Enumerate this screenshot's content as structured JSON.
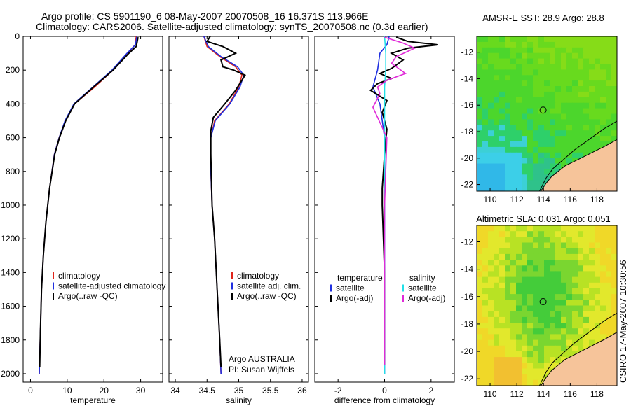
{
  "title_line1": "Argo profile: CS 5901190_6 08-May-2007 20070508_16 16.371S 113.966E",
  "title_line2": "Climatology: CARS2006. Satellite-adjusted climatology: synTS_20070508.nc (0.3d earlier)",
  "side_label": "CSIRO 17-May-2007 10:30:56",
  "colors": {
    "climatology": "#e0241b",
    "satellite": "#1f2fe0",
    "argo": "#000000",
    "sal_satellite": "#22e0e8",
    "sal_argo": "#e02ad8",
    "land": "#f6c49a",
    "coast": "#000000"
  },
  "chart_data": [
    {
      "type": "line",
      "xlabel": "temperature",
      "ylabel": "",
      "xlim": [
        -2,
        36
      ],
      "ylim": [
        0,
        2050
      ],
      "xticks": [
        0,
        10,
        20,
        30
      ],
      "yticks": [
        0,
        200,
        400,
        600,
        800,
        1000,
        1200,
        1400,
        1600,
        1800,
        2000
      ],
      "y_reversed": true,
      "legend": [
        "climatology",
        "satellite-adjusted climatology",
        "Argo(..raw -QC)"
      ],
      "series": [
        {
          "name": "climatology",
          "color_key": "climatology",
          "x": [
            28.8,
            28.5,
            26.5,
            22.5,
            17.5,
            12.0,
            9.5,
            7.8,
            6.5,
            5.2,
            4.2,
            3.5,
            3.0,
            2.7,
            2.4
          ],
          "y": [
            0,
            50,
            100,
            200,
            300,
            400,
            500,
            600,
            700,
            900,
            1100,
            1300,
            1500,
            1750,
            2000
          ]
        },
        {
          "name": "satellite-adjusted climatology",
          "color_key": "satellite",
          "x": [
            29.0,
            28.6,
            26.3,
            22.2,
            17.0,
            11.8,
            9.4,
            7.8,
            6.5,
            5.2,
            4.2,
            3.5,
            3.0,
            2.7,
            2.4
          ],
          "y": [
            0,
            50,
            100,
            200,
            300,
            400,
            500,
            600,
            700,
            900,
            1100,
            1300,
            1500,
            1750,
            2000
          ]
        },
        {
          "name": "Argo(..raw -QC)",
          "color_key": "argo",
          "x": [
            29.3,
            29.0,
            28.8,
            26.8,
            22.5,
            17.2,
            12.0,
            9.6,
            7.9,
            6.6,
            5.2,
            4.2,
            3.5,
            3.0,
            2.7,
            2.5
          ],
          "y": [
            5,
            40,
            60,
            100,
            200,
            300,
            400,
            500,
            600,
            700,
            900,
            1100,
            1300,
            1500,
            1750,
            1960
          ]
        }
      ]
    },
    {
      "type": "line",
      "xlabel": "salinity",
      "xlim": [
        33.9,
        36.1
      ],
      "ylim": [
        0,
        2050
      ],
      "xticks": [
        34,
        34.5,
        35,
        35.5,
        36
      ],
      "yticks": [
        0,
        200,
        400,
        600,
        800,
        1000,
        1200,
        1400,
        1600,
        1800,
        2000
      ],
      "y_reversed": true,
      "legend": [
        "climatology",
        "satellite adj. clim.",
        "Argo(..raw -QC)"
      ],
      "annotation": [
        "Argo AUSTRALIA",
        "PI: Susan Wijffels"
      ],
      "series": [
        {
          "name": "climatology",
          "color_key": "climatology",
          "x": [
            34.45,
            34.5,
            34.7,
            34.95,
            35.05,
            35.0,
            34.85,
            34.62,
            34.56,
            34.56,
            34.58,
            34.62,
            34.66,
            34.7,
            34.72
          ],
          "y": [
            0,
            60,
            120,
            180,
            230,
            300,
            400,
            500,
            600,
            800,
            1000,
            1200,
            1500,
            1800,
            2000
          ]
        },
        {
          "name": "satellite adj. clim.",
          "color_key": "satellite",
          "x": [
            34.45,
            34.52,
            34.72,
            34.98,
            35.08,
            35.02,
            34.86,
            34.63,
            34.56,
            34.56,
            34.58,
            34.62,
            34.66,
            34.7,
            34.72
          ],
          "y": [
            0,
            60,
            120,
            180,
            230,
            300,
            400,
            500,
            600,
            800,
            1000,
            1200,
            1500,
            1800,
            2000
          ]
        },
        {
          "name": "Argo(..raw -QC)",
          "color_key": "argo",
          "x": [
            34.55,
            34.5,
            34.75,
            34.95,
            34.72,
            34.75,
            34.92,
            35.1,
            35.05,
            34.95,
            34.78,
            34.6,
            34.56,
            34.56,
            34.58,
            34.62,
            34.66,
            34.7,
            34.72
          ],
          "y": [
            0,
            30,
            60,
            100,
            140,
            180,
            200,
            230,
            260,
            320,
            400,
            480,
            560,
            700,
            1000,
            1200,
            1500,
            1800,
            1960
          ]
        }
      ]
    },
    {
      "type": "line",
      "xlabel": "difference from climatology",
      "xlim": [
        -3,
        3
      ],
      "ylim": [
        0,
        2050
      ],
      "xticks": [
        -2,
        0,
        2
      ],
      "yticks": [
        0,
        200,
        400,
        600,
        800,
        1000,
        1200,
        1400,
        1600,
        1800,
        2000
      ],
      "y_reversed": true,
      "legend_temperature": [
        "temperature",
        "satellite",
        "Argo(-adj)"
      ],
      "legend_salinity": [
        "salinity",
        "satellite",
        "Argo(-adj)"
      ],
      "series": [
        {
          "name": "temperature satellite",
          "color_key": "satellite",
          "x": [
            0.2,
            0.1,
            -0.2,
            -0.3,
            -0.5,
            -0.2,
            -0.1,
            0.0,
            0.0,
            0.0,
            0.0,
            0.0
          ],
          "y": [
            0,
            50,
            100,
            200,
            300,
            400,
            500,
            600,
            900,
            1200,
            1600,
            2000
          ]
        },
        {
          "name": "temperature Argo(-adj)",
          "color_key": "argo",
          "x": [
            0.5,
            1.0,
            2.3,
            1.0,
            0.3,
            0.8,
            0.3,
            -0.2,
            0.3,
            -0.3,
            -0.6,
            0.1,
            -0.1,
            0.1,
            0.0,
            -0.1,
            -0.1,
            0.0,
            0.0
          ],
          "y": [
            5,
            30,
            50,
            70,
            100,
            140,
            190,
            220,
            250,
            280,
            320,
            380,
            450,
            550,
            700,
            900,
            1000,
            1400,
            1950
          ]
        },
        {
          "name": "salinity satellite",
          "color_key": "sal_satellite",
          "x": [
            0.0,
            0.05,
            0.05,
            0.0,
            0.0,
            0.0,
            0.0,
            0.0
          ],
          "y": [
            0,
            100,
            200,
            300,
            500,
            1000,
            1500,
            2000
          ]
        },
        {
          "name": "salinity Argo(-adj)",
          "color_key": "sal_argo",
          "x": [
            0.0,
            0.8,
            1.3,
            0.5,
            0.3,
            0.9,
            0.1,
            -0.3,
            -0.2,
            -0.5,
            0.1,
            0.0,
            0.0
          ],
          "y": [
            5,
            40,
            70,
            120,
            160,
            220,
            260,
            300,
            340,
            420,
            600,
            1000,
            1950
          ]
        }
      ]
    },
    {
      "type": "heatmap",
      "title": "AMSR-E SST: 28.9 Argo: 28.8",
      "xlim": [
        109,
        119.5
      ],
      "ylim": [
        -22.5,
        -10.8
      ],
      "xticks": [
        110,
        112,
        114,
        116,
        118
      ],
      "yticks": [
        -12,
        -14,
        -16,
        -18,
        -20,
        -22
      ],
      "marker": {
        "lon": 113.966,
        "lat": -16.371
      }
    },
    {
      "type": "heatmap",
      "title": "Altimetric SLA: 0.031 Argo: 0.051",
      "xlim": [
        109,
        119.5
      ],
      "ylim": [
        -22.5,
        -10.8
      ],
      "xticks": [
        110,
        112,
        114,
        116,
        118
      ],
      "yticks": [
        -12,
        -14,
        -16,
        -18,
        -20,
        -22
      ],
      "marker": {
        "lon": 113.966,
        "lat": -16.371
      }
    }
  ]
}
